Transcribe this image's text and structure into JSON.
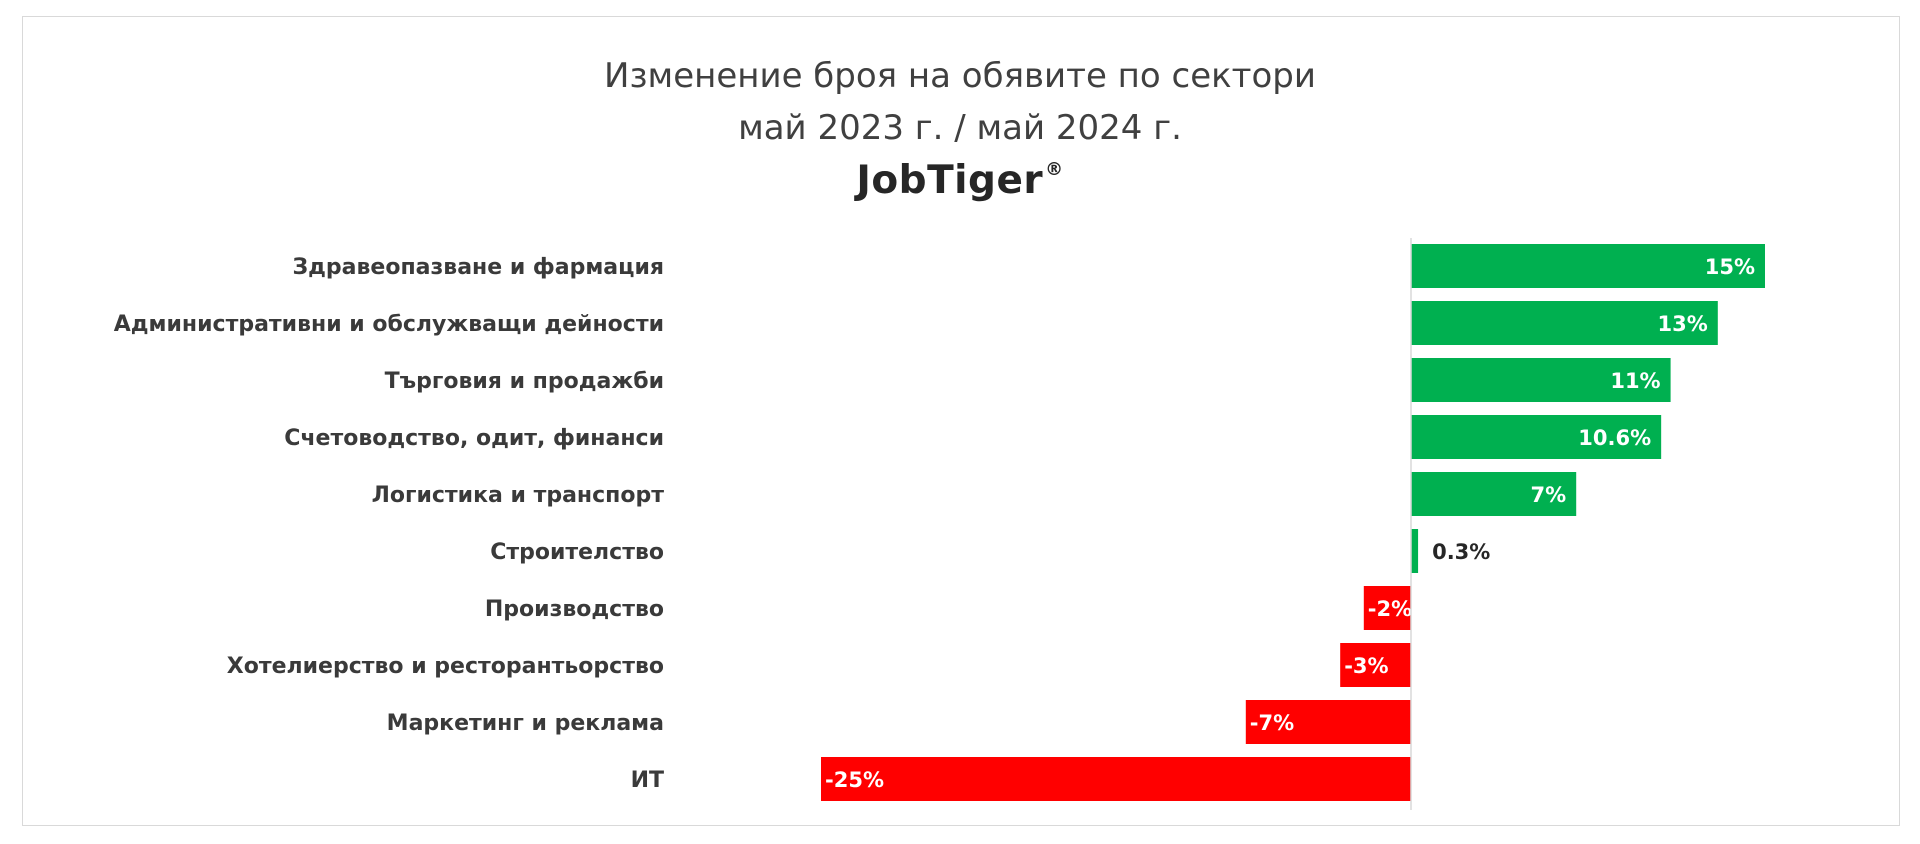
{
  "title_line_1": "Изменение броя на обявите по сектори",
  "title_line_2": "май 2023 г. / май 2024 г.",
  "brand": {
    "name": "JobTiger",
    "mark": "®"
  },
  "colors": {
    "positive": "#00b050",
    "negative": "#ff0000",
    "axis": "#d9d9d9",
    "label": "#3a3a3a"
  },
  "chart_data": {
    "type": "bar",
    "orientation": "horizontal",
    "title": "Изменение броя на обявите по сектори май 2023 г. / май 2024 г.",
    "categories": [
      "Здравеопазване и фармация",
      "Административни и обслужващи дейности",
      "Търговия и продажби",
      "Счетоводство, одит, финанси",
      "Логистика и транспорт",
      "Строителство",
      "Производство",
      "Хотелиерство и ресторантьорство",
      "Маркетинг и реклама",
      "ИТ"
    ],
    "values": [
      15,
      13,
      11,
      10.6,
      7,
      0.3,
      -2,
      -3,
      -7,
      -25
    ],
    "value_labels": [
      "15%",
      "13%",
      "11%",
      "10.6%",
      "7%",
      "0.3%",
      "-2%",
      "-3%",
      "-7%",
      "-25%"
    ],
    "xlim": [
      -25,
      15
    ],
    "unit": "%",
    "grid": false,
    "legend": "none"
  }
}
